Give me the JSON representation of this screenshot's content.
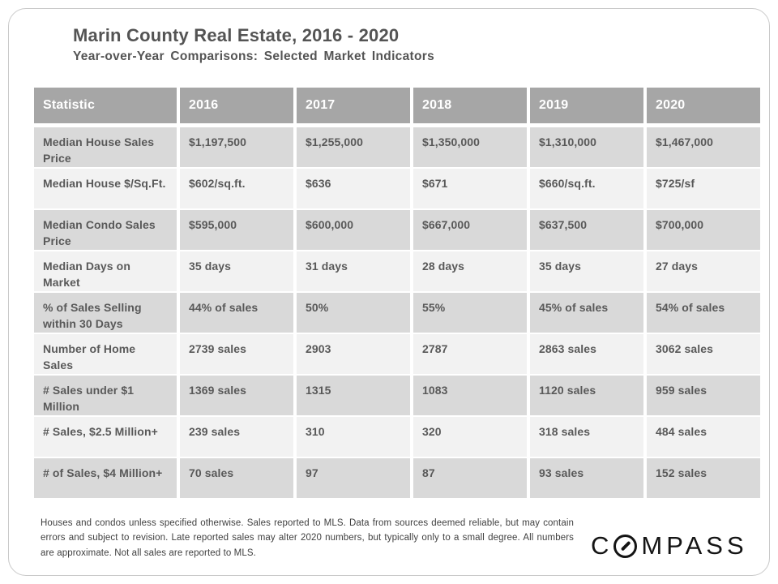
{
  "header": {
    "title": "Marin County Real Estate, 2016 - 2020",
    "subtitle": "Year-over-Year Comparisons: Selected Market Indicators"
  },
  "table": {
    "columns": [
      "Statistic",
      "2016",
      "2017",
      "2018",
      "2019",
      "2020"
    ],
    "rows": [
      {
        "label": "Median House Sales Price",
        "values": [
          "$1,197,500",
          "$1,255,000",
          "$1,350,000",
          "$1,310,000",
          "$1,467,000"
        ]
      },
      {
        "label": "Median House $/Sq.Ft.",
        "values": [
          "$602/sq.ft.",
          "$636",
          "$671",
          "$660/sq.ft.",
          "$725/sf"
        ]
      },
      {
        "label": "Median Condo Sales Price",
        "values": [
          "$595,000",
          "$600,000",
          "$667,000",
          "$637,500",
          "$700,000"
        ]
      },
      {
        "label": "Median Days on Market",
        "values": [
          "35 days",
          "31 days",
          "28 days",
          "35 days",
          "27 days"
        ]
      },
      {
        "label": "% of Sales Selling within 30 Days",
        "values": [
          "44% of sales",
          "50%",
          "55%",
          "45% of sales",
          "54% of sales"
        ]
      },
      {
        "label": "Number of Home Sales",
        "values": [
          "2739 sales",
          "2903",
          "2787",
          "2863 sales",
          "3062 sales"
        ]
      },
      {
        "label": "# Sales under $1 Million",
        "values": [
          "1369 sales",
          "1315",
          "1083",
          "1120 sales",
          "959 sales"
        ]
      },
      {
        "label": "# Sales, $2.5 Million+",
        "values": [
          "239 sales",
          "310",
          "320",
          "318 sales",
          "484 sales"
        ]
      },
      {
        "label": "# of Sales, $4 Million+",
        "values": [
          "70 sales",
          "97",
          "87",
          "93 sales",
          "152 sales"
        ]
      }
    ]
  },
  "footer": {
    "disclaimer": "Houses and condos unless specified otherwise. Sales reported to MLS. Data from sources deemed reliable, but may contain errors and subject to revision. Late reported sales may alter 2020 numbers, but typically only to a small degree. All numbers are approximate. Not all sales are reported to MLS.",
    "logo": {
      "brand": "COMPASS",
      "part_before_o": "C",
      "part_after_o": "MPASS"
    }
  },
  "colors": {
    "header_bg": "#a6a6a6",
    "header_text": "#ffffff",
    "row_dark": "#d9d9d9",
    "row_light": "#f2f2f2",
    "cell_text": "#595959",
    "title_text": "#545454",
    "footnote_text": "#3f3f3f",
    "logo_text": "#141414",
    "frame_border": "#c9c9c9"
  }
}
